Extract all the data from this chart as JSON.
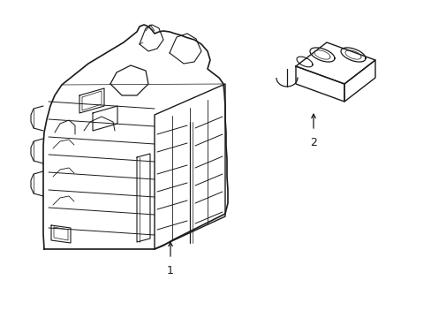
{
  "background_color": "#ffffff",
  "line_color": "#1a1a1a",
  "line_width": 1.0,
  "label1": "1",
  "label2": "2",
  "figsize": [
    4.89,
    3.6
  ],
  "dpi": 100,
  "xlim": [
    0,
    489
  ],
  "ylim": [
    0,
    360
  ]
}
